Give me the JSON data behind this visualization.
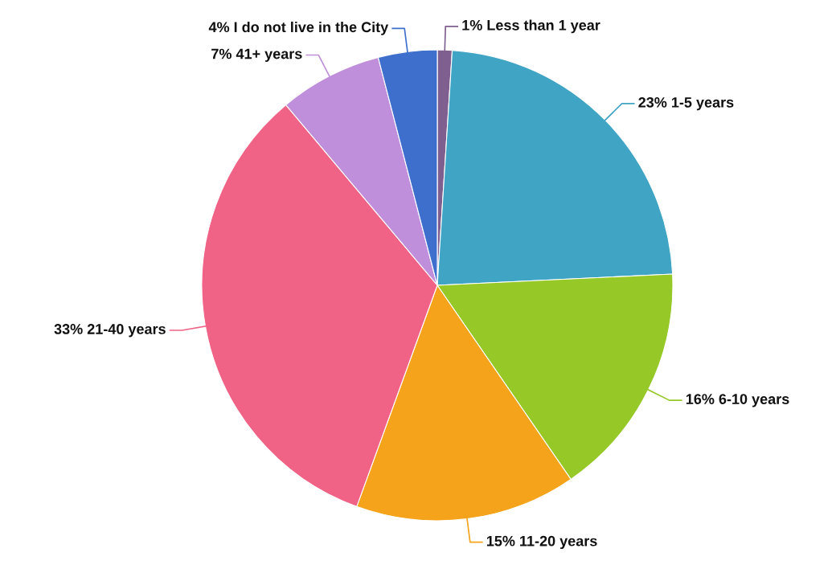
{
  "chart_data": {
    "type": "pie",
    "categories": [
      "Less than 1 year",
      "1-5 years",
      "6-10 years",
      "11-20 years",
      "21-40 years",
      "41+ years",
      "I do not live in the City"
    ],
    "values": [
      1,
      23,
      16,
      15,
      33,
      7,
      4
    ],
    "value_labels": [
      "1%",
      "23%",
      "16%",
      "15%",
      "33%",
      "7%",
      "4%"
    ],
    "colors": [
      "#7e5f8f",
      "#40a4c4",
      "#96c928",
      "#f5a31a",
      "#f06386",
      "#bf8fdb",
      "#3f6fcc"
    ],
    "legend": false
  }
}
